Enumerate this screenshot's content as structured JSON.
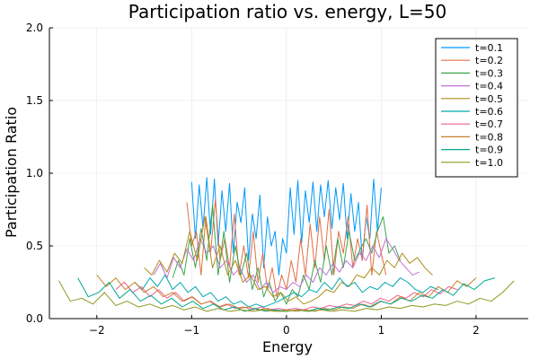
{
  "chart_data": {
    "type": "line",
    "title": "Participation ratio vs. energy, L=50",
    "xlabel": "Energy",
    "ylabel": "Participation Ratio",
    "xlim": [
      -2.5,
      2.55
    ],
    "ylim": [
      0,
      2
    ],
    "xticks": [
      -2,
      -1,
      0,
      1,
      2
    ],
    "xtick_labels": [
      "−2",
      "−1",
      "0",
      "1",
      "2"
    ],
    "yticks": [
      0,
      0.5,
      1,
      1.5,
      2
    ],
    "ytick_labels": [
      "0.0",
      "0.5",
      "1.0",
      "1.5",
      "2.0"
    ],
    "grid": true,
    "legend_position": "top-right",
    "series": [
      {
        "name": "t=0.1",
        "color": "#009af9",
        "x": [
          -1.0,
          -0.96,
          -0.92,
          -0.88,
          -0.84,
          -0.8,
          -0.76,
          -0.72,
          -0.68,
          -0.64,
          -0.6,
          -0.56,
          -0.52,
          -0.48,
          -0.44,
          -0.4,
          -0.36,
          -0.32,
          -0.28,
          -0.24,
          -0.2,
          -0.16,
          -0.12,
          -0.08,
          -0.04,
          0.0,
          0.04,
          0.08,
          0.12,
          0.16,
          0.2,
          0.24,
          0.28,
          0.32,
          0.36,
          0.4,
          0.44,
          0.48,
          0.52,
          0.56,
          0.6,
          0.64,
          0.68,
          0.72,
          0.76,
          0.8,
          0.84,
          0.88,
          0.92,
          0.96,
          1.0
        ],
        "y": [
          0.94,
          0.55,
          0.92,
          0.62,
          0.97,
          0.58,
          0.96,
          0.5,
          0.88,
          0.6,
          0.93,
          0.45,
          0.8,
          0.66,
          0.9,
          0.4,
          0.72,
          0.55,
          0.85,
          0.35,
          0.7,
          0.5,
          0.6,
          0.3,
          0.55,
          0.45,
          0.9,
          0.58,
          0.95,
          0.52,
          0.88,
          0.66,
          0.94,
          0.6,
          0.92,
          0.7,
          0.95,
          0.62,
          0.9,
          0.68,
          0.93,
          0.55,
          0.86,
          0.6,
          0.8,
          0.4,
          0.7,
          0.55,
          0.96,
          0.6,
          0.9
        ]
      },
      {
        "name": "t=0.2",
        "color": "#e26f46",
        "x": [
          -1.05,
          -1.0,
          -0.95,
          -0.9,
          -0.85,
          -0.8,
          -0.75,
          -0.7,
          -0.65,
          -0.6,
          -0.55,
          -0.5,
          -0.45,
          -0.4,
          -0.35,
          -0.3,
          -0.25,
          -0.2,
          -0.15,
          -0.1,
          -0.05,
          0.0,
          0.05,
          0.1,
          0.15,
          0.2,
          0.25,
          0.3,
          0.35,
          0.4,
          0.45,
          0.5,
          0.55,
          0.6,
          0.65,
          0.7,
          0.75,
          0.8,
          0.85,
          0.9,
          0.95,
          1.0,
          1.05
        ],
        "y": [
          0.8,
          0.5,
          0.6,
          0.3,
          0.7,
          0.45,
          0.82,
          0.4,
          0.55,
          0.35,
          0.72,
          0.3,
          0.5,
          0.28,
          0.6,
          0.25,
          0.45,
          0.2,
          0.35,
          0.15,
          0.3,
          0.2,
          0.4,
          0.25,
          0.55,
          0.3,
          0.65,
          0.35,
          0.7,
          0.4,
          0.75,
          0.3,
          0.6,
          0.45,
          0.7,
          0.35,
          0.55,
          0.4,
          0.78,
          0.3,
          0.6,
          0.45,
          0.3
        ]
      },
      {
        "name": "t=0.3",
        "color": "#3da44d",
        "x": [
          -1.2,
          -1.14,
          -1.08,
          -1.02,
          -0.96,
          -0.9,
          -0.84,
          -0.78,
          -0.72,
          -0.66,
          -0.6,
          -0.54,
          -0.48,
          -0.42,
          -0.36,
          -0.3,
          -0.24,
          -0.18,
          -0.12,
          -0.06,
          0.0,
          0.06,
          0.12,
          0.18,
          0.24,
          0.3,
          0.36,
          0.42,
          0.48,
          0.54,
          0.6,
          0.66,
          0.72,
          0.78,
          0.84,
          0.9,
          0.96,
          1.02,
          1.08,
          1.14,
          1.2
        ],
        "y": [
          0.28,
          0.4,
          0.3,
          0.55,
          0.35,
          0.62,
          0.4,
          0.78,
          0.3,
          0.6,
          0.25,
          0.5,
          0.3,
          0.45,
          0.2,
          0.35,
          0.15,
          0.25,
          0.12,
          0.18,
          0.1,
          0.2,
          0.15,
          0.3,
          0.2,
          0.4,
          0.25,
          0.5,
          0.3,
          0.55,
          0.35,
          0.6,
          0.4,
          0.48,
          0.55,
          0.45,
          0.6,
          0.7,
          0.45,
          0.5,
          0.4
        ]
      },
      {
        "name": "t=0.4",
        "color": "#c271d2",
        "x": [
          -1.4,
          -1.33,
          -1.26,
          -1.19,
          -1.12,
          -1.05,
          -0.98,
          -0.91,
          -0.84,
          -0.77,
          -0.7,
          -0.63,
          -0.56,
          -0.49,
          -0.42,
          -0.35,
          -0.28,
          -0.21,
          -0.14,
          -0.07,
          0.0,
          0.07,
          0.14,
          0.21,
          0.28,
          0.35,
          0.42,
          0.49,
          0.56,
          0.63,
          0.7,
          0.77,
          0.84,
          0.91,
          0.98,
          1.05,
          1.12,
          1.19,
          1.26,
          1.33,
          1.4
        ],
        "y": [
          0.3,
          0.38,
          0.28,
          0.42,
          0.35,
          0.48,
          0.4,
          0.55,
          0.45,
          0.5,
          0.35,
          0.4,
          0.3,
          0.35,
          0.25,
          0.3,
          0.2,
          0.25,
          0.18,
          0.22,
          0.2,
          0.25,
          0.22,
          0.3,
          0.25,
          0.35,
          0.3,
          0.38,
          0.32,
          0.4,
          0.35,
          0.45,
          0.4,
          0.5,
          0.42,
          0.55,
          0.48,
          0.4,
          0.35,
          0.3,
          0.32
        ]
      },
      {
        "name": "t=0.5",
        "color": "#ac8d18",
        "x": [
          -1.5,
          -1.42,
          -1.34,
          -1.26,
          -1.18,
          -1.1,
          -1.02,
          -0.94,
          -0.86,
          -0.78,
          -0.7,
          -0.62,
          -0.54,
          -0.46,
          -0.38,
          -0.3,
          -0.22,
          -0.14,
          -0.06,
          0.02,
          0.1,
          0.18,
          0.26,
          0.34,
          0.42,
          0.5,
          0.58,
          0.66,
          0.74,
          0.82,
          0.9,
          0.98,
          1.06,
          1.14,
          1.22,
          1.3,
          1.38,
          1.46,
          1.54
        ],
        "y": [
          0.35,
          0.3,
          0.4,
          0.32,
          0.45,
          0.38,
          0.6,
          0.4,
          0.7,
          0.35,
          0.5,
          0.3,
          0.4,
          0.25,
          0.3,
          0.2,
          0.22,
          0.15,
          0.18,
          0.12,
          0.15,
          0.1,
          0.12,
          0.15,
          0.2,
          0.18,
          0.25,
          0.22,
          0.3,
          0.28,
          0.35,
          0.3,
          0.4,
          0.35,
          0.45,
          0.38,
          0.42,
          0.35,
          0.3
        ]
      },
      {
        "name": "t=0.6",
        "color": "#00a9ad",
        "x": [
          -1.6,
          -1.52,
          -1.44,
          -1.36,
          -1.28,
          -1.2,
          -1.12,
          -1.04,
          -0.96,
          -0.88,
          -0.8,
          -0.72,
          -0.64,
          -0.56,
          -0.48,
          -0.4,
          -0.32,
          -0.24,
          -0.16,
          -0.08,
          0.0,
          0.08,
          0.16,
          0.24,
          0.32,
          0.4,
          0.48,
          0.56,
          0.64,
          0.72,
          0.8,
          0.88,
          0.96,
          1.04,
          1.12,
          1.2,
          1.28,
          1.36,
          1.44,
          1.52,
          1.6
        ],
        "y": [
          0.25,
          0.2,
          0.28,
          0.22,
          0.3,
          0.2,
          0.25,
          0.18,
          0.22,
          0.15,
          0.18,
          0.12,
          0.15,
          0.1,
          0.12,
          0.08,
          0.1,
          0.08,
          0.1,
          0.12,
          0.15,
          0.18,
          0.15,
          0.2,
          0.18,
          0.25,
          0.2,
          0.28,
          0.22,
          0.25,
          0.18,
          0.22,
          0.2,
          0.25,
          0.22,
          0.28,
          0.25,
          0.2,
          0.18,
          0.22,
          0.2
        ]
      },
      {
        "name": "t=0.7",
        "color": "#ed5e93",
        "x": [
          -1.8,
          -1.71,
          -1.62,
          -1.53,
          -1.44,
          -1.35,
          -1.26,
          -1.17,
          -1.08,
          -0.99,
          -0.9,
          -0.81,
          -0.72,
          -0.63,
          -0.54,
          -0.45,
          -0.36,
          -0.27,
          -0.18,
          -0.09,
          0.0,
          0.09,
          0.18,
          0.27,
          0.36,
          0.45,
          0.54,
          0.63,
          0.72,
          0.81,
          0.9,
          0.99,
          1.08,
          1.17,
          1.26,
          1.35,
          1.44,
          1.53,
          1.62,
          1.71,
          1.8
        ],
        "y": [
          0.2,
          0.25,
          0.18,
          0.22,
          0.15,
          0.2,
          0.14,
          0.18,
          0.12,
          0.15,
          0.1,
          0.12,
          0.08,
          0.1,
          0.07,
          0.08,
          0.06,
          0.08,
          0.06,
          0.07,
          0.06,
          0.07,
          0.06,
          0.08,
          0.07,
          0.09,
          0.08,
          0.1,
          0.09,
          0.12,
          0.1,
          0.14,
          0.12,
          0.16,
          0.14,
          0.18,
          0.15,
          0.2,
          0.17,
          0.22,
          0.2
        ]
      },
      {
        "name": "t=0.8",
        "color": "#c68125",
        "x": [
          -2.0,
          -1.9,
          -1.8,
          -1.7,
          -1.6,
          -1.5,
          -1.4,
          -1.3,
          -1.2,
          -1.1,
          -1.0,
          -0.9,
          -0.8,
          -0.7,
          -0.6,
          -0.5,
          -0.4,
          -0.3,
          -0.2,
          -0.1,
          0.0,
          0.1,
          0.2,
          0.3,
          0.4,
          0.5,
          0.6,
          0.7,
          0.8,
          0.9,
          1.0,
          1.1,
          1.2,
          1.3,
          1.4,
          1.5,
          1.6,
          1.7,
          1.8,
          1.9,
          2.0
        ],
        "y": [
          0.3,
          0.22,
          0.28,
          0.2,
          0.25,
          0.18,
          0.22,
          0.15,
          0.18,
          0.12,
          0.15,
          0.1,
          0.12,
          0.08,
          0.1,
          0.07,
          0.08,
          0.06,
          0.07,
          0.05,
          0.06,
          0.05,
          0.06,
          0.05,
          0.07,
          0.06,
          0.08,
          0.07,
          0.1,
          0.08,
          0.12,
          0.1,
          0.15,
          0.12,
          0.18,
          0.15,
          0.22,
          0.18,
          0.26,
          0.22,
          0.28
        ]
      },
      {
        "name": "t=0.9",
        "color": "#00a98d",
        "x": [
          -2.2,
          -2.09,
          -1.98,
          -1.87,
          -1.76,
          -1.65,
          -1.54,
          -1.43,
          -1.32,
          -1.21,
          -1.1,
          -0.99,
          -0.88,
          -0.77,
          -0.66,
          -0.55,
          -0.44,
          -0.33,
          -0.22,
          -0.11,
          0.0,
          0.11,
          0.22,
          0.33,
          0.44,
          0.55,
          0.66,
          0.77,
          0.88,
          0.99,
          1.1,
          1.21,
          1.32,
          1.43,
          1.54,
          1.65,
          1.76,
          1.87,
          1.98,
          2.09,
          2.2
        ],
        "y": [
          0.28,
          0.15,
          0.18,
          0.25,
          0.14,
          0.2,
          0.12,
          0.16,
          0.1,
          0.14,
          0.08,
          0.12,
          0.07,
          0.1,
          0.06,
          0.08,
          0.05,
          0.07,
          0.05,
          0.06,
          0.05,
          0.06,
          0.05,
          0.07,
          0.06,
          0.08,
          0.07,
          0.1,
          0.08,
          0.12,
          0.1,
          0.14,
          0.12,
          0.16,
          0.14,
          0.2,
          0.16,
          0.24,
          0.2,
          0.26,
          0.28
        ]
      },
      {
        "name": "t=1.0",
        "color": "#8e971d",
        "x": [
          -2.4,
          -2.28,
          -2.16,
          -2.04,
          -1.92,
          -1.8,
          -1.68,
          -1.56,
          -1.44,
          -1.32,
          -1.2,
          -1.08,
          -0.96,
          -0.84,
          -0.72,
          -0.6,
          -0.48,
          -0.36,
          -0.24,
          -0.12,
          0.0,
          0.12,
          0.24,
          0.36,
          0.48,
          0.6,
          0.72,
          0.84,
          0.96,
          1.08,
          1.2,
          1.32,
          1.44,
          1.56,
          1.68,
          1.8,
          1.92,
          2.04,
          2.16,
          2.28,
          2.4
        ],
        "y": [
          0.26,
          0.12,
          0.14,
          0.1,
          0.18,
          0.09,
          0.12,
          0.08,
          0.1,
          0.07,
          0.09,
          0.06,
          0.08,
          0.05,
          0.07,
          0.05,
          0.06,
          0.05,
          0.06,
          0.05,
          0.05,
          0.06,
          0.05,
          0.06,
          0.05,
          0.06,
          0.05,
          0.07,
          0.06,
          0.08,
          0.07,
          0.09,
          0.08,
          0.1,
          0.09,
          0.12,
          0.1,
          0.14,
          0.12,
          0.18,
          0.26
        ]
      }
    ]
  }
}
